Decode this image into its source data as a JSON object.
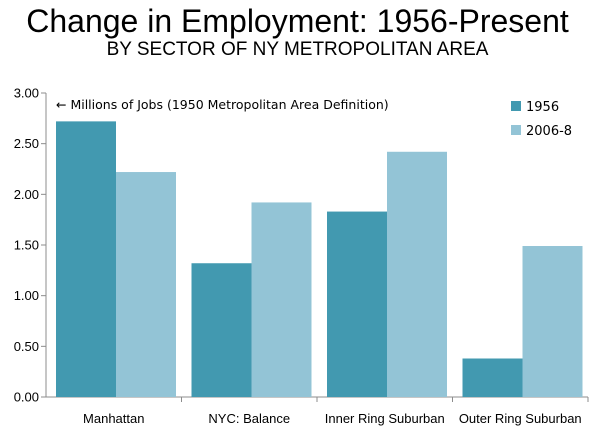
{
  "header": {
    "title": "Change in Employment: 1956-Present",
    "subtitle": "BY SECTOR OF NY METROPOLITAN AREA"
  },
  "chart_data": {
    "type": "bar",
    "title": "Change in Employment: 1956-Present",
    "subtitle": "BY SECTOR OF NY METROPOLITAN AREA",
    "annotation": "← Millions of Jobs (1950 Metropolitan Area Definition)",
    "categories": [
      "Manhattan",
      "NYC: Balance",
      "Inner Ring Suburban",
      "Outer Ring Suburban"
    ],
    "series": [
      {
        "name": "1956",
        "color": "#4299b0",
        "values": [
          2.72,
          1.32,
          1.83,
          0.38
        ]
      },
      {
        "name": "2006-8",
        "color": "#93c4d6",
        "values": [
          2.22,
          1.92,
          2.42,
          1.49
        ]
      }
    ],
    "ylim": [
      0,
      3.0
    ],
    "yticks": [
      "0.00",
      "0.50",
      "1.00",
      "1.50",
      "2.00",
      "2.50",
      "3.00"
    ],
    "grid": false,
    "legend_position": "top-right"
  }
}
